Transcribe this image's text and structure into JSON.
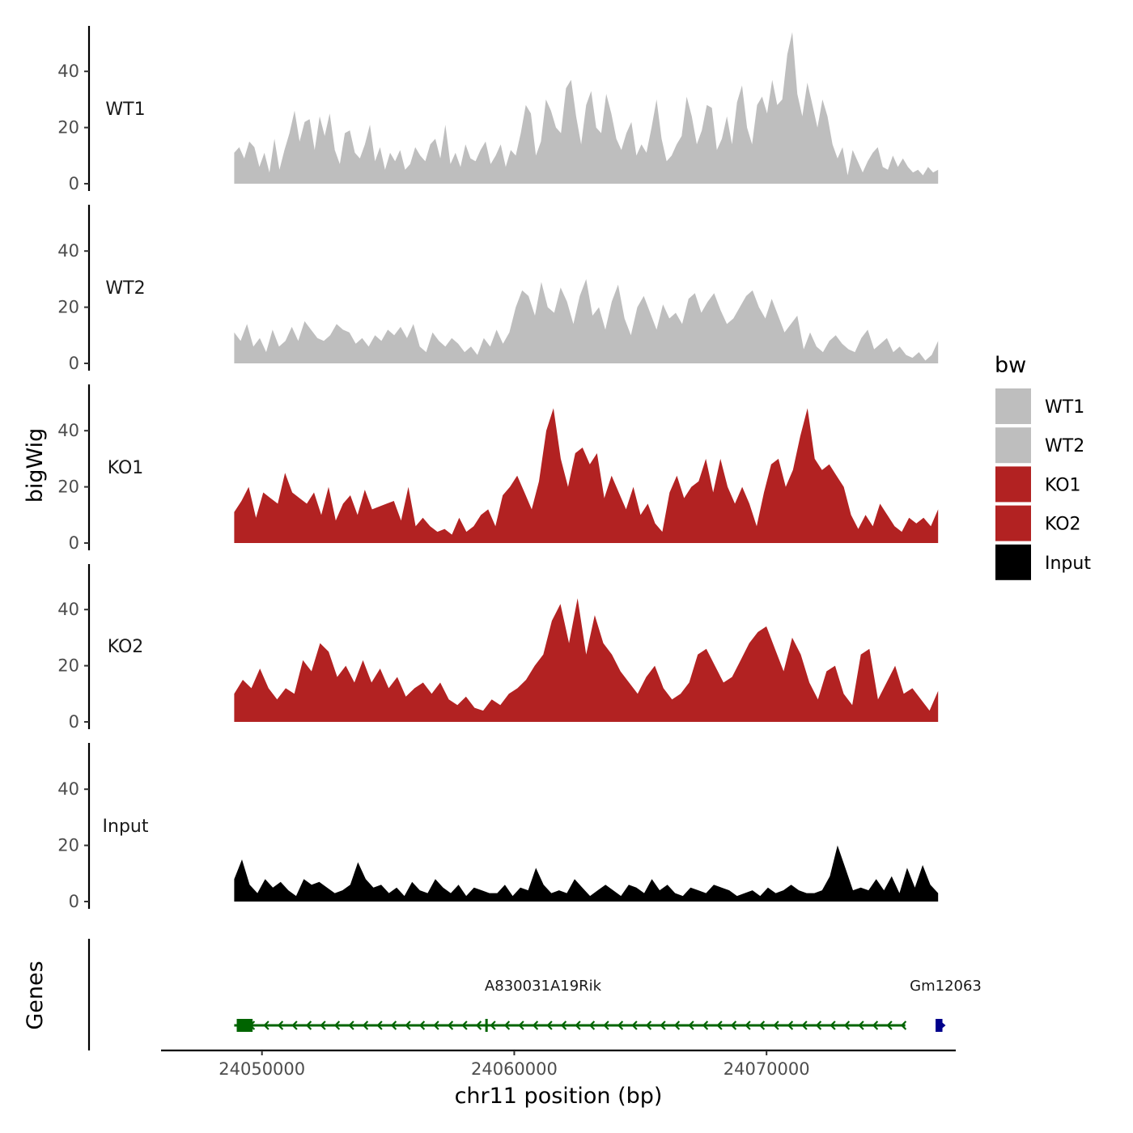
{
  "chart_data": {
    "type": "area",
    "chromosome": "chr11",
    "xlabel": "chr11 position (bp)",
    "ylabel": "bigWig",
    "genes_label": "Genes",
    "xlim": [
      24046000,
      24077500
    ],
    "region": [
      24048900,
      24076800
    ],
    "x_ticks": [
      24050000,
      24060000,
      24070000
    ],
    "x_tick_labels": [
      "24050000",
      "24060000",
      "24070000"
    ],
    "ylim": [
      0,
      55
    ],
    "y_ticks": [
      0,
      20,
      40
    ],
    "y_tick_labels": [
      "0",
      "20",
      "40"
    ],
    "colors": {
      "WT1": "#bebebe",
      "WT2": "#bebebe",
      "KO1": "#b22222",
      "KO2": "#b22222",
      "Input": "#000000"
    },
    "legend": {
      "title": "bw",
      "position": "right",
      "entries": [
        "WT1",
        "WT2",
        "KO1",
        "KO2",
        "Input"
      ]
    },
    "series": [
      {
        "name": "WT1",
        "values": [
          11,
          13,
          9,
          15,
          13,
          6,
          11,
          4,
          16,
          5,
          12,
          18,
          26,
          15,
          22,
          23,
          12,
          24,
          17,
          25,
          12,
          7,
          18,
          19,
          11,
          9,
          14,
          21,
          8,
          13,
          5,
          11,
          8,
          12,
          5,
          7,
          13,
          10,
          8,
          14,
          16,
          9,
          21,
          7,
          11,
          6,
          14,
          9,
          8,
          12,
          15,
          7,
          10,
          14,
          6,
          12,
          10,
          18,
          28,
          25,
          10,
          15,
          30,
          26,
          20,
          18,
          34,
          37,
          24,
          14,
          28,
          33,
          20,
          18,
          32,
          25,
          16,
          12,
          18,
          22,
          10,
          14,
          11,
          20,
          30,
          16,
          8,
          10,
          14,
          17,
          31,
          24,
          14,
          19,
          28,
          27,
          12,
          16,
          24,
          14,
          29,
          35,
          20,
          14,
          28,
          31,
          25,
          37,
          28,
          30,
          46,
          54,
          32,
          24,
          36,
          28,
          20,
          30,
          24,
          14,
          9,
          13,
          3,
          12,
          8,
          4,
          8,
          11,
          13,
          6,
          5,
          10,
          6,
          9,
          6,
          4,
          5,
          3,
          6,
          4,
          5
        ]
      },
      {
        "name": "WT2",
        "values": [
          11,
          8,
          14,
          6,
          9,
          4,
          12,
          6,
          8,
          13,
          8,
          15,
          12,
          9,
          8,
          10,
          14,
          12,
          11,
          7,
          9,
          6,
          10,
          8,
          12,
          10,
          13,
          9,
          14,
          6,
          4,
          11,
          8,
          6,
          9,
          7,
          4,
          6,
          3,
          9,
          6,
          12,
          7,
          11,
          20,
          26,
          24,
          17,
          29,
          20,
          18,
          27,
          22,
          14,
          24,
          30,
          17,
          20,
          12,
          22,
          28,
          16,
          10,
          20,
          24,
          18,
          12,
          21,
          16,
          18,
          14,
          23,
          25,
          18,
          22,
          25,
          19,
          14,
          16,
          20,
          24,
          26,
          20,
          16,
          23,
          17,
          11,
          14,
          17,
          5,
          11,
          6,
          4,
          8,
          10,
          7,
          5,
          4,
          9,
          12,
          5,
          7,
          9,
          4,
          6,
          3,
          2,
          4,
          1,
          3,
          8
        ]
      },
      {
        "name": "KO1",
        "values": [
          11,
          15,
          20,
          9,
          18,
          16,
          14,
          25,
          18,
          16,
          14,
          18,
          10,
          20,
          8,
          14,
          17,
          10,
          19,
          12,
          13,
          14,
          15,
          8,
          20,
          6,
          9,
          6,
          4,
          5,
          3,
          9,
          4,
          6,
          10,
          12,
          6,
          17,
          20,
          24,
          18,
          12,
          22,
          40,
          48,
          30,
          20,
          32,
          34,
          28,
          32,
          16,
          24,
          18,
          12,
          20,
          10,
          14,
          7,
          4,
          18,
          24,
          16,
          20,
          22,
          30,
          18,
          30,
          20,
          14,
          20,
          14,
          6,
          18,
          28,
          30,
          20,
          26,
          38,
          48,
          30,
          26,
          28,
          24,
          20,
          10,
          5,
          10,
          6,
          14,
          10,
          6,
          4,
          9,
          7,
          9,
          6,
          12
        ]
      },
      {
        "name": "KO2",
        "values": [
          10,
          15,
          12,
          19,
          12,
          8,
          12,
          10,
          22,
          18,
          28,
          25,
          16,
          20,
          14,
          22,
          14,
          19,
          12,
          16,
          9,
          12,
          14,
          10,
          14,
          8,
          6,
          9,
          5,
          4,
          8,
          6,
          10,
          12,
          15,
          20,
          24,
          36,
          42,
          28,
          44,
          24,
          38,
          28,
          24,
          18,
          14,
          10,
          16,
          20,
          12,
          8,
          10,
          14,
          24,
          26,
          20,
          14,
          16,
          22,
          28,
          32,
          34,
          26,
          18,
          30,
          24,
          14,
          8,
          18,
          20,
          10,
          6,
          24,
          26,
          8,
          14,
          20,
          10,
          12,
          8,
          4,
          11
        ]
      },
      {
        "name": "Input",
        "values": [
          8,
          15,
          6,
          3,
          8,
          5,
          7,
          4,
          2,
          8,
          6,
          7,
          5,
          3,
          4,
          6,
          14,
          8,
          5,
          6,
          3,
          5,
          2,
          7,
          4,
          3,
          8,
          5,
          3,
          6,
          2,
          5,
          4,
          3,
          3,
          6,
          2,
          5,
          4,
          12,
          6,
          3,
          4,
          3,
          8,
          5,
          2,
          4,
          6,
          4,
          2,
          6,
          5,
          3,
          8,
          4,
          6,
          3,
          2,
          5,
          4,
          3,
          6,
          5,
          4,
          2,
          3,
          4,
          2,
          5,
          3,
          4,
          6,
          4,
          3,
          3,
          4,
          9,
          20,
          12,
          4,
          5,
          4,
          8,
          4,
          9,
          3,
          12,
          5,
          13,
          6,
          3
        ]
      }
    ],
    "genes": [
      {
        "name": "A830031A19Rik",
        "start": 24048900,
        "end": 24075500,
        "strand": "-",
        "color": "#006400",
        "tss_exon": [
          24049000,
          24049500
        ],
        "inner_exon": 24058900
      },
      {
        "name": "Gm12063",
        "start": 24076700,
        "end": 24077100,
        "strand": "+",
        "color": "#00008b"
      }
    ]
  }
}
